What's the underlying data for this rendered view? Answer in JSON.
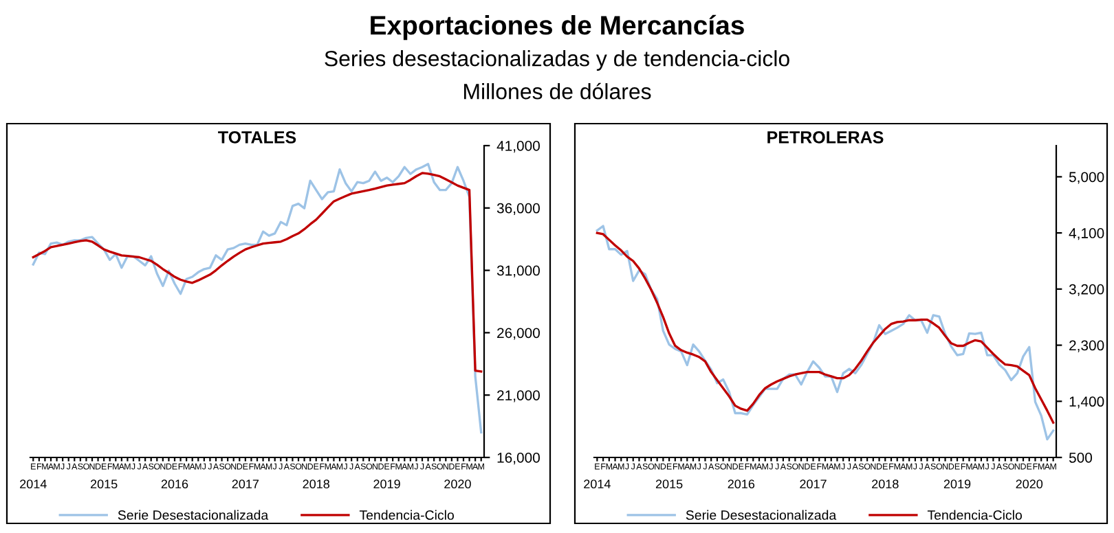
{
  "chart_data": [
    {
      "type": "line",
      "subtitle": "Exportaciones de Mercancías\nSeries desestacionalizadas y de tendencia-ciclo\nMillones de dólares",
      "title": "TOTALES",
      "categories": [
        "E",
        "F",
        "M",
        "A",
        "M",
        "J",
        "J",
        "A",
        "S",
        "O",
        "N",
        "D",
        "E",
        "F",
        "M",
        "A",
        "M",
        "J",
        "J",
        "A",
        "S",
        "O",
        "N",
        "D",
        "E",
        "F",
        "M",
        "A",
        "M",
        "J",
        "J",
        "A",
        "S",
        "O",
        "N",
        "D",
        "E",
        "F",
        "M",
        "A",
        "M",
        "J",
        "J",
        "A",
        "S",
        "O",
        "N",
        "D",
        "E",
        "F",
        "M",
        "A",
        "M",
        "J",
        "J",
        "A",
        "S",
        "O",
        "N",
        "D",
        "E",
        "F",
        "M",
        "A",
        "M",
        "J",
        "J",
        "A",
        "S",
        "O",
        "N",
        "D",
        "E",
        "F",
        "M",
        "A",
        "M"
      ],
      "annotations": [
        "2014",
        "2015",
        "2016",
        "2017",
        "2018",
        "2019",
        "2020"
      ],
      "ylim": [
        16000,
        41000
      ],
      "yticks": [
        {
          "value": 16000,
          "label": "16,000"
        },
        {
          "value": 21000,
          "label": "21,000"
        },
        {
          "value": 26000,
          "label": "26,000"
        },
        {
          "value": 31000,
          "label": "31,000"
        },
        {
          "value": 36000,
          "label": "36,000"
        },
        {
          "value": 41000,
          "label": "41,000"
        }
      ],
      "grid": false,
      "legend": "bottom",
      "marker": "none",
      "line_style": "solid",
      "series": [
        {
          "name": "Serie Desestacionalizada",
          "color": "#9dc3e6",
          "values": [
            31470,
            32420,
            32310,
            33150,
            33230,
            33050,
            33300,
            33410,
            33410,
            33600,
            33670,
            33150,
            32680,
            31840,
            32310,
            31210,
            32130,
            32130,
            31760,
            31400,
            32130,
            30740,
            29750,
            30960,
            29930,
            29120,
            30300,
            30480,
            30850,
            31100,
            31210,
            32200,
            31840,
            32680,
            32790,
            33050,
            33150,
            33050,
            33050,
            34110,
            33780,
            33960,
            34880,
            34620,
            36160,
            36340,
            35980,
            38180,
            37440,
            36710,
            37260,
            37330,
            39090,
            37990,
            37330,
            38070,
            37990,
            38180,
            38910,
            38180,
            38430,
            38070,
            38540,
            39280,
            38730,
            39090,
            39280,
            39530,
            38070,
            37440,
            37440,
            37990,
            39280,
            38180,
            36890,
            22500,
            18010
          ]
        },
        {
          "name": "Tendencia-Ciclo",
          "color": "#c00000",
          "values": [
            32050,
            32300,
            32550,
            32860,
            32950,
            33050,
            33150,
            33250,
            33350,
            33410,
            33300,
            33000,
            32680,
            32500,
            32350,
            32200,
            32150,
            32100,
            32050,
            31900,
            31760,
            31450,
            31100,
            30800,
            30480,
            30250,
            30100,
            30000,
            30200,
            30430,
            30660,
            31000,
            31400,
            31760,
            32100,
            32400,
            32680,
            32850,
            33000,
            33150,
            33200,
            33250,
            33300,
            33500,
            33750,
            33960,
            34300,
            34700,
            35060,
            35550,
            36050,
            36530,
            36750,
            36950,
            37150,
            37250,
            37350,
            37440,
            37550,
            37680,
            37800,
            37870,
            37930,
            37990,
            38250,
            38550,
            38800,
            38750,
            38650,
            38540,
            38300,
            38050,
            37800,
            37620,
            37440,
            22960,
            22890
          ]
        }
      ]
    },
    {
      "type": "line",
      "title": "PETROLERAS",
      "categories": [
        "E",
        "F",
        "M",
        "A",
        "M",
        "J",
        "J",
        "A",
        "S",
        "O",
        "N",
        "D",
        "E",
        "F",
        "M",
        "A",
        "M",
        "J",
        "J",
        "A",
        "S",
        "O",
        "N",
        "D",
        "E",
        "F",
        "M",
        "A",
        "M",
        "J",
        "J",
        "A",
        "S",
        "O",
        "N",
        "D",
        "E",
        "F",
        "M",
        "A",
        "M",
        "J",
        "J",
        "A",
        "S",
        "O",
        "N",
        "D",
        "E",
        "F",
        "M",
        "A",
        "M",
        "J",
        "J",
        "A",
        "S",
        "O",
        "N",
        "D",
        "E",
        "F",
        "M",
        "A",
        "M",
        "J",
        "J",
        "A",
        "S",
        "O",
        "N",
        "D",
        "E",
        "F",
        "M",
        "A",
        "M"
      ],
      "annotations": [
        "2014",
        "2015",
        "2016",
        "2017",
        "2018",
        "2019",
        "2020"
      ],
      "ylim": [
        500,
        5500
      ],
      "yticks": [
        {
          "value": 500,
          "label": "500"
        },
        {
          "value": 1400,
          "label": "1,400"
        },
        {
          "value": 2300,
          "label": "2,300"
        },
        {
          "value": 3200,
          "label": "3,200"
        },
        {
          "value": 4100,
          "label": "4,100"
        },
        {
          "value": 5000,
          "label": "5,000"
        }
      ],
      "grid": false,
      "legend": "bottom",
      "marker": "none",
      "line_style": "solid",
      "series": [
        {
          "name": "Serie Desestacionalizada",
          "color": "#9dc3e6",
          "values": [
            4140,
            4210,
            3840,
            3840,
            3750,
            3810,
            3330,
            3500,
            3440,
            3190,
            3040,
            2530,
            2310,
            2240,
            2200,
            1980,
            2310,
            2200,
            2050,
            1910,
            1690,
            1750,
            1550,
            1210,
            1210,
            1190,
            1340,
            1470,
            1600,
            1600,
            1600,
            1760,
            1830,
            1830,
            1670,
            1870,
            2040,
            1940,
            1800,
            1800,
            1550,
            1850,
            1920,
            1850,
            1980,
            2160,
            2340,
            2620,
            2480,
            2530,
            2580,
            2640,
            2780,
            2700,
            2700,
            2500,
            2780,
            2760,
            2480,
            2280,
            2140,
            2160,
            2490,
            2480,
            2500,
            2140,
            2140,
            1990,
            1900,
            1740,
            1850,
            2120,
            2270,
            1390,
            1170,
            790,
            930
          ]
        },
        {
          "name": "Tendencia-Ciclo",
          "color": "#c00000",
          "values": [
            4100,
            4080,
            3990,
            3900,
            3820,
            3720,
            3650,
            3530,
            3370,
            3190,
            2980,
            2750,
            2490,
            2290,
            2220,
            2180,
            2150,
            2110,
            2040,
            1870,
            1740,
            1610,
            1480,
            1330,
            1280,
            1250,
            1360,
            1500,
            1610,
            1670,
            1720,
            1760,
            1800,
            1830,
            1850,
            1870,
            1870,
            1870,
            1830,
            1800,
            1770,
            1770,
            1820,
            1920,
            2050,
            2200,
            2340,
            2450,
            2560,
            2640,
            2670,
            2680,
            2700,
            2700,
            2710,
            2710,
            2650,
            2580,
            2450,
            2330,
            2290,
            2290,
            2340,
            2380,
            2360,
            2260,
            2160,
            2070,
            1990,
            1980,
            1960,
            1890,
            1820,
            1610,
            1430,
            1250,
            1060
          ]
        }
      ]
    }
  ]
}
